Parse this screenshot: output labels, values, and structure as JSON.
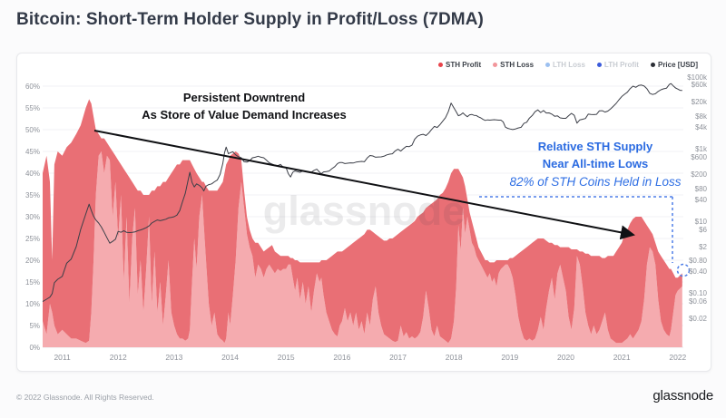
{
  "page": {
    "title": "Bitcoin: Short-Term Holder Supply in Profit/Loss (7DMA)"
  },
  "watermark": "glassnode",
  "footer": {
    "copyright": "© 2022 Glassnode. All Rights Reserved.",
    "brand": "glassnode"
  },
  "legend": {
    "items": [
      {
        "label": "STH Profit",
        "color": "#e8434a",
        "active": true
      },
      {
        "label": "STH Loss",
        "color": "#f2969b",
        "active": true
      },
      {
        "label": "LTH Loss",
        "color": "#9cc0f0",
        "active": false
      },
      {
        "label": "LTH Profit",
        "color": "#3b5bdb",
        "active": false
      },
      {
        "label": "Price [USD]",
        "color": "#2b2e35",
        "active": true
      }
    ]
  },
  "annotations": {
    "downtrend_line1": "Persistent Downtrend",
    "downtrend_line2": "As Store of Value Demand Increases",
    "sth_low_line1": "Relative STH Supply",
    "sth_low_line2": "Near All-time Lows",
    "sth_low_line3": "82% of STH Coins Held in Loss"
  },
  "chart_data": {
    "type": "area",
    "title": "Bitcoin: Short-Term Holder Supply in Profit/Loss (7DMA)",
    "stacking": "stacked: STH Loss (bottom) + STH Profit (top) = total STH supply %; Price on right log axis",
    "grid": "horizontal, every 5%",
    "legend_position": "top-right",
    "y_left": {
      "unit": "%",
      "ticks": [
        0,
        5,
        10,
        15,
        20,
        25,
        30,
        35,
        40,
        45,
        50,
        55,
        60
      ],
      "range": [
        0,
        63
      ]
    },
    "y_right": {
      "unit": "USD",
      "scale": "log",
      "ticks": [
        {
          "v": 100000,
          "label": "$100k"
        },
        {
          "v": 60000,
          "label": "$60k"
        },
        {
          "v": 20000,
          "label": "$20k"
        },
        {
          "v": 8000,
          "label": "$8k"
        },
        {
          "v": 4000,
          "label": "$4k"
        },
        {
          "v": 1000,
          "label": "$1k"
        },
        {
          "v": 600,
          "label": "$600"
        },
        {
          "v": 200,
          "label": "$200"
        },
        {
          "v": 80,
          "label": "$80"
        },
        {
          "v": 40,
          "label": "$40"
        },
        {
          "v": 10,
          "label": "$10"
        },
        {
          "v": 6,
          "label": "$6"
        },
        {
          "v": 2,
          "label": "$2"
        },
        {
          "v": 0.8,
          "label": "$0.80"
        },
        {
          "v": 0.4,
          "label": "$0.40"
        },
        {
          "v": 0.1,
          "label": "$0.10"
        },
        {
          "v": 0.06,
          "label": "$0.06"
        },
        {
          "v": 0.02,
          "label": "$0.02"
        }
      ],
      "range": [
        0.02,
        100000
      ]
    },
    "x": {
      "ticks": [
        2011,
        2012,
        2013,
        2014,
        2015,
        2016,
        2017,
        2018,
        2019,
        2020,
        2021,
        2022
      ],
      "range": [
        2010.65,
        2022.1
      ]
    },
    "x_years": [
      2010.65,
      2010.72,
      2010.78,
      2010.82,
      2010.86,
      2010.92,
      2011.0,
      2011.08,
      2011.16,
      2011.25,
      2011.33,
      2011.42,
      2011.48,
      2011.52,
      2011.56,
      2011.6,
      2011.65,
      2011.7,
      2011.75,
      2011.8,
      2011.85,
      2011.9,
      2011.95,
      2012.0,
      2012.05,
      2012.1,
      2012.15,
      2012.2,
      2012.25,
      2012.3,
      2012.35,
      2012.4,
      2012.45,
      2012.5,
      2012.55,
      2012.6,
      2012.65,
      2012.7,
      2012.75,
      2012.8,
      2012.85,
      2012.9,
      2012.95,
      2013.0,
      2013.05,
      2013.1,
      2013.15,
      2013.2,
      2013.25,
      2013.28,
      2013.32,
      2013.36,
      2013.4,
      2013.45,
      2013.5,
      2013.53,
      2013.57,
      2013.62,
      2013.67,
      2013.72,
      2013.77,
      2013.82,
      2013.87,
      2013.9,
      2013.93,
      2013.97,
      2014.0,
      2014.05,
      2014.1,
      2014.15,
      2014.2,
      2014.25,
      2014.3,
      2014.35,
      2014.4,
      2014.45,
      2014.5,
      2014.55,
      2014.6,
      2014.65,
      2014.7,
      2014.75,
      2014.8,
      2014.85,
      2014.9,
      2014.95,
      2015.0,
      2015.04,
      2015.08,
      2015.12,
      2015.16,
      2015.2,
      2015.25,
      2015.3,
      2015.35,
      2015.4,
      2015.45,
      2015.5,
      2015.55,
      2015.6,
      2015.63,
      2015.67,
      2015.72,
      2015.77,
      2015.82,
      2015.87,
      2015.92,
      2015.96,
      2016.0,
      2016.05,
      2016.1,
      2016.15,
      2016.2,
      2016.25,
      2016.3,
      2016.35,
      2016.4,
      2016.45,
      2016.5,
      2016.55,
      2016.6,
      2016.65,
      2016.7,
      2016.75,
      2016.8,
      2016.85,
      2016.9,
      2016.95,
      2017.0,
      2017.05,
      2017.1,
      2017.15,
      2017.2,
      2017.25,
      2017.3,
      2017.35,
      2017.4,
      2017.45,
      2017.5,
      2017.55,
      2017.6,
      2017.65,
      2017.7,
      2017.75,
      2017.8,
      2017.85,
      2017.9,
      2017.95,
      2018.0,
      2018.04,
      2018.08,
      2018.12,
      2018.16,
      2018.2,
      2018.24,
      2018.28,
      2018.32,
      2018.36,
      2018.4,
      2018.44,
      2018.48,
      2018.52,
      2018.56,
      2018.6,
      2018.64,
      2018.68,
      2018.72,
      2018.76,
      2018.8,
      2018.84,
      2018.88,
      2018.92,
      2018.96,
      2019.0,
      2019.05,
      2019.1,
      2019.15,
      2019.2,
      2019.25,
      2019.3,
      2019.35,
      2019.4,
      2019.45,
      2019.5,
      2019.55,
      2019.6,
      2019.65,
      2019.7,
      2019.75,
      2019.8,
      2019.85,
      2019.9,
      2019.95,
      2020.0,
      2020.05,
      2020.1,
      2020.15,
      2020.2,
      2020.25,
      2020.3,
      2020.35,
      2020.4,
      2020.45,
      2020.5,
      2020.55,
      2020.6,
      2020.65,
      2020.7,
      2020.75,
      2020.8,
      2020.85,
      2020.9,
      2020.95,
      2021.0,
      2021.05,
      2021.1,
      2021.15,
      2021.2,
      2021.25,
      2021.3,
      2021.35,
      2021.4,
      2021.45,
      2021.5,
      2021.55,
      2021.6,
      2021.65,
      2021.7,
      2021.75,
      2021.8,
      2021.85,
      2021.88,
      2021.92,
      2021.96,
      2022.0,
      2022.04,
      2022.08
    ],
    "series": [
      {
        "name": "STH Loss",
        "color": "#f5abaf",
        "axis": "left",
        "values": [
          6,
          3,
          10,
          8,
          5,
          3,
          4,
          3,
          2,
          2,
          1.5,
          1,
          1.5,
          8,
          20,
          35,
          44,
          45,
          40,
          44,
          43,
          30,
          38,
          25,
          35,
          15,
          30,
          10,
          25,
          32,
          12,
          20,
          8,
          18,
          30,
          10,
          22,
          8,
          15,
          5,
          12,
          20,
          8,
          5,
          3,
          2,
          2,
          1.5,
          2,
          4,
          15,
          25,
          18,
          30,
          35,
          28,
          20,
          10,
          5,
          8,
          3,
          2,
          1.5,
          1,
          2,
          8,
          5,
          12,
          20,
          32,
          38,
          32,
          26,
          23,
          21,
          16,
          19,
          18,
          16,
          18,
          19,
          18,
          17,
          18,
          17.5,
          18,
          18,
          19,
          19,
          16,
          13,
          16,
          11,
          15,
          10,
          14,
          8,
          13,
          17,
          15,
          16,
          12,
          8,
          6,
          4,
          3,
          2.5,
          5,
          6,
          9,
          6,
          8,
          5,
          8,
          4,
          6,
          3,
          8,
          5,
          11,
          14,
          8,
          5,
          3,
          2.5,
          2,
          1.5,
          1.2,
          1.5,
          5,
          2.5,
          3.5,
          2,
          2.5,
          2,
          2.5,
          3.5,
          7,
          13,
          9,
          4,
          2.5,
          5,
          2.5,
          2,
          1.5,
          1,
          2,
          6,
          14,
          28,
          22,
          32,
          26,
          30,
          27,
          24,
          23,
          21,
          20,
          19,
          18,
          17,
          16,
          17,
          15,
          16,
          14,
          17,
          18,
          18.5,
          19,
          19,
          18,
          16,
          12,
          7,
          4,
          2,
          1.5,
          2,
          1.5,
          2,
          4,
          7,
          4,
          9,
          13,
          16,
          11,
          17,
          19,
          16,
          13,
          7,
          4,
          9,
          21,
          19,
          14,
          8,
          5,
          3,
          5,
          3,
          4,
          6,
          8,
          4,
          2,
          1.5,
          1,
          1,
          1,
          1.5,
          2,
          3,
          2,
          3,
          4,
          6,
          11,
          19,
          23,
          22,
          19,
          11,
          6,
          4,
          3,
          2.5,
          4,
          8,
          12,
          13,
          13.5,
          14
        ]
      },
      {
        "name": "STH Profit",
        "color": "#e96f75",
        "axis": "left",
        "values": [
          34,
          41,
          28,
          12,
          37,
          42,
          40,
          43,
          45,
          47,
          49.5,
          54,
          55.5,
          48,
          33,
          15,
          5,
          3,
          8,
          3,
          3,
          15,
          6,
          18,
          7,
          26,
          10,
          29,
          13,
          5,
          24,
          16,
          27,
          17,
          5,
          26,
          14,
          29,
          22,
          33,
          26,
          19,
          32,
          36,
          39,
          40,
          41,
          41.5,
          41,
          39,
          27,
          16,
          22,
          9,
          3,
          10,
          17,
          26,
          31,
          28,
          33,
          35,
          36.5,
          39,
          40,
          35,
          39,
          32.5,
          25,
          12.5,
          5,
          4,
          4,
          4,
          4,
          8,
          5,
          5,
          6,
          4.5,
          4,
          5.5,
          5,
          3.5,
          3.5,
          3,
          3,
          2,
          1.5,
          4.5,
          7,
          4,
          8.5,
          4.5,
          9.5,
          5.5,
          11.5,
          6.5,
          2.5,
          4.5,
          4,
          8,
          12,
          14.5,
          17,
          18.5,
          19.5,
          17,
          16,
          13.5,
          17,
          15.5,
          19,
          16.5,
          21,
          19.5,
          23,
          19,
          22,
          15.5,
          12,
          17.5,
          20,
          21.5,
          22,
          23,
          23.5,
          24.3,
          24.5,
          21.5,
          24.5,
          24,
          26,
          26,
          27,
          27.5,
          27,
          24,
          19,
          23.5,
          29,
          31,
          29,
          32.5,
          33.5,
          35,
          37,
          38,
          35,
          27,
          13,
          18,
          7,
          11,
          4,
          4,
          5,
          4,
          4,
          3,
          3,
          3,
          3,
          4,
          2.5,
          4.5,
          3.5,
          6,
          3,
          2,
          1.5,
          1,
          1,
          2.5,
          4.5,
          9,
          14.5,
          18,
          20.5,
          21.5,
          21.5,
          22.5,
          22.5,
          21,
          18,
          21,
          15.5,
          11,
          8,
          12.5,
          6.5,
          4,
          7,
          10,
          16,
          18.5,
          13.5,
          1.5,
          3,
          8,
          13.5,
          16.5,
          18,
          16,
          18,
          17,
          14.5,
          12.5,
          17,
          19,
          19.5,
          21,
          22,
          23,
          24.5,
          25,
          25.5,
          27.5,
          27,
          26,
          24,
          18,
          9,
          4,
          4,
          5,
          11,
          15,
          16,
          16,
          15.5,
          14,
          9,
          4,
          3,
          3,
          3
        ]
      },
      {
        "name": "Price [USD]",
        "color": "#3c3f48",
        "axis": "right",
        "values": [
          0.06,
          0.07,
          0.08,
          0.1,
          0.2,
          0.25,
          0.3,
          0.7,
          0.9,
          2,
          6,
          16,
          30,
          20,
          14,
          11,
          9,
          7,
          5,
          3.5,
          2.5,
          2.8,
          3.2,
          5.3,
          5,
          5.5,
          5,
          4.9,
          5,
          5.1,
          5.5,
          5.8,
          6.2,
          6.7,
          7.5,
          9,
          10,
          11,
          10.5,
          11,
          11.5,
          12.5,
          13,
          13.5,
          15,
          20,
          35,
          60,
          140,
          230,
          120,
          90,
          110,
          100,
          85,
          70,
          95,
          105,
          110,
          125,
          140,
          200,
          400,
          800,
          1150,
          750,
          800,
          850,
          700,
          620,
          580,
          450,
          440,
          480,
          580,
          600,
          640,
          600,
          580,
          500,
          420,
          390,
          360,
          350,
          380,
          320,
          310,
          210,
          170,
          230,
          250,
          240,
          230,
          250,
          240,
          235,
          230,
          260,
          280,
          230,
          210,
          235,
          240,
          250,
          290,
          330,
          400,
          430,
          430,
          400,
          410,
          420,
          415,
          440,
          450,
          460,
          450,
          570,
          670,
          650,
          600,
          610,
          615,
          640,
          700,
          730,
          750,
          900,
          1000,
          890,
          1050,
          1200,
          1180,
          1300,
          1900,
          2300,
          2500,
          2600,
          2400,
          2800,
          3500,
          4300,
          4000,
          4800,
          6000,
          7500,
          11000,
          19000,
          14000,
          11000,
          8500,
          9000,
          10200,
          8900,
          8000,
          9000,
          9200,
          8700,
          8600,
          7900,
          7400,
          6700,
          6300,
          6500,
          6400,
          6500,
          6600,
          6500,
          6400,
          6400,
          5700,
          4100,
          3800,
          3650,
          3500,
          3650,
          3900,
          4050,
          5200,
          5600,
          7300,
          8600,
          11000,
          12300,
          10400,
          11800,
          10100,
          10200,
          9400,
          8200,
          8400,
          7400,
          7200,
          7200,
          8500,
          9900,
          8700,
          5300,
          6500,
          6800,
          7100,
          9400,
          9200,
          9100,
          9250,
          11600,
          11700,
          10700,
          11400,
          13100,
          15600,
          18700,
          23500,
          29000,
          33500,
          38000,
          48000,
          56000,
          52000,
          58500,
          60000,
          56500,
          47500,
          35500,
          33000,
          34500,
          40000,
          44500,
          47500,
          49500,
          62500,
          66000,
          57000,
          50000,
          46500,
          43000,
          42500
        ]
      }
    ],
    "end_marker": {
      "highlighted_value_pct": 17,
      "note": "dashed blue circle on last point"
    }
  }
}
